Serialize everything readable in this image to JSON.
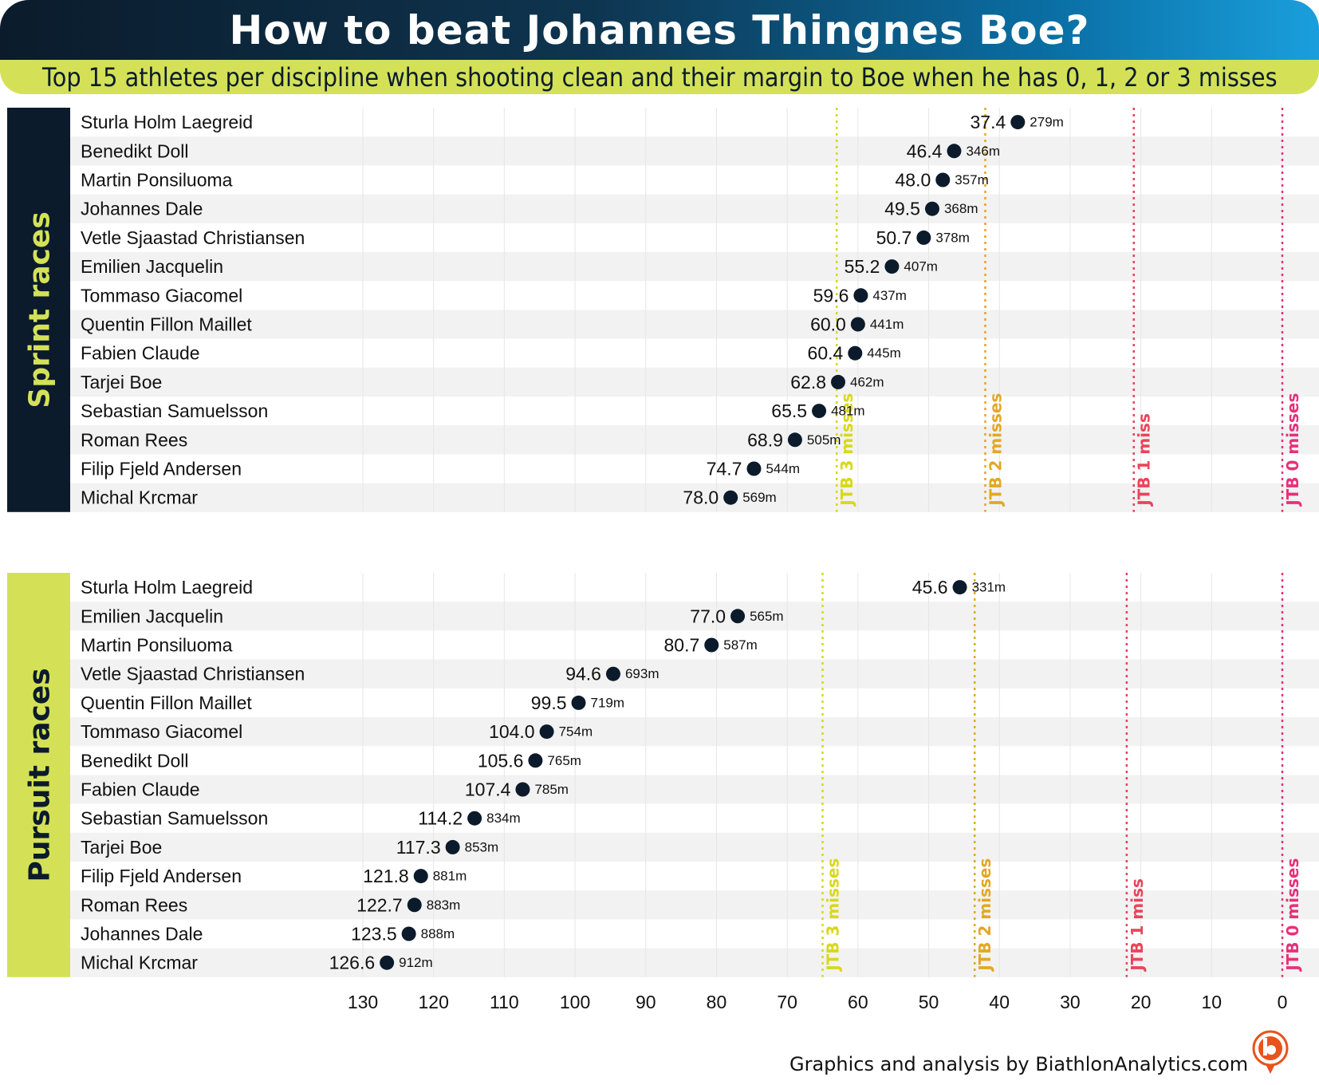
{
  "header": {
    "title": "How to beat Johannes Thingnes Boe?",
    "subtitle": "Top 15 athletes per discipline when shooting clean and their margin to Boe when he has 0, 1, 2 or 3 misses"
  },
  "footer": {
    "credit": "Graphics and analysis by BiathlonAnalytics.com"
  },
  "colors": {
    "dark": "#0b1b2b",
    "lime": "#d4e157",
    "jtb3": "#d8d81a",
    "jtb2": "#e3a726",
    "jtb1": "#e8455a",
    "jtb0": "#e8307a",
    "row_alt": "#f2f2f2",
    "dot": "#0b1b2b"
  },
  "chart_data": [
    {
      "type": "scatter",
      "panel_label": "Sprint races",
      "xlim": [
        130,
        0
      ],
      "x_ticks": [
        130,
        120,
        110,
        100,
        90,
        80,
        70,
        60,
        50,
        40,
        30,
        20,
        10,
        0
      ],
      "athletes": [
        {
          "name": "Sturla Holm Laegreid",
          "value": "37.4",
          "distance": "279m"
        },
        {
          "name": "Benedikt Doll",
          "value": "46.4",
          "distance": "346m"
        },
        {
          "name": "Martin Ponsiluoma",
          "value": "48.0",
          "distance": "357m"
        },
        {
          "name": "Johannes Dale",
          "value": "49.5",
          "distance": "368m"
        },
        {
          "name": "Vetle Sjaastad Christiansen",
          "value": "50.7",
          "distance": "378m"
        },
        {
          "name": "Emilien Jacquelin",
          "value": "55.2",
          "distance": "407m"
        },
        {
          "name": "Tommaso Giacomel",
          "value": "59.6",
          "distance": "437m"
        },
        {
          "name": "Quentin Fillon Maillet",
          "value": "60.0",
          "distance": "441m"
        },
        {
          "name": "Fabien Claude",
          "value": "60.4",
          "distance": "445m"
        },
        {
          "name": "Tarjei Boe",
          "value": "62.8",
          "distance": "462m"
        },
        {
          "name": "Sebastian Samuelsson",
          "value": "65.5",
          "distance": "481m"
        },
        {
          "name": "Roman Rees",
          "value": "68.9",
          "distance": "505m"
        },
        {
          "name": "Filip Fjeld Andersen",
          "value": "74.7",
          "distance": "544m"
        },
        {
          "name": "Michal Krcmar",
          "value": "78.0",
          "distance": "569m"
        }
      ],
      "reference_lines": [
        {
          "label": "JTB 3 misses",
          "value": 63,
          "color": "#d8d81a"
        },
        {
          "label": "JTB 2 misses",
          "value": 42,
          "color": "#e3a726"
        },
        {
          "label": "JTB 1 miss",
          "value": 21,
          "color": "#e8455a"
        },
        {
          "label": "JTB 0 misses",
          "value": 0,
          "color": "#e8307a"
        }
      ]
    },
    {
      "type": "scatter",
      "panel_label": "Pursuit races",
      "xlim": [
        130,
        0
      ],
      "x_ticks": [
        130,
        120,
        110,
        100,
        90,
        80,
        70,
        60,
        50,
        40,
        30,
        20,
        10,
        0
      ],
      "athletes": [
        {
          "name": "Sturla Holm Laegreid",
          "value": "45.6",
          "distance": "331m"
        },
        {
          "name": "Emilien Jacquelin",
          "value": "77.0",
          "distance": "565m"
        },
        {
          "name": "Martin Ponsiluoma",
          "value": "80.7",
          "distance": "587m"
        },
        {
          "name": "Vetle Sjaastad Christiansen",
          "value": "94.6",
          "distance": "693m"
        },
        {
          "name": "Quentin Fillon Maillet",
          "value": "99.5",
          "distance": "719m"
        },
        {
          "name": "Tommaso Giacomel",
          "value": "104.0",
          "distance": "754m"
        },
        {
          "name": "Benedikt Doll",
          "value": "105.6",
          "distance": "765m"
        },
        {
          "name": "Fabien Claude",
          "value": "107.4",
          "distance": "785m"
        },
        {
          "name": "Sebastian Samuelsson",
          "value": "114.2",
          "distance": "834m"
        },
        {
          "name": "Tarjei Boe",
          "value": "117.3",
          "distance": "853m"
        },
        {
          "name": "Filip Fjeld Andersen",
          "value": "121.8",
          "distance": "881m"
        },
        {
          "name": "Roman Rees",
          "value": "122.7",
          "distance": "883m"
        },
        {
          "name": "Johannes Dale",
          "value": "123.5",
          "distance": "888m"
        },
        {
          "name": "Michal Krcmar",
          "value": "126.6",
          "distance": "912m"
        }
      ],
      "reference_lines": [
        {
          "label": "JTB 3 misses",
          "value": 65,
          "color": "#d8d81a"
        },
        {
          "label": "JTB 2 misses",
          "value": 43.5,
          "color": "#e3a726"
        },
        {
          "label": "JTB 1 miss",
          "value": 22,
          "color": "#e8455a"
        },
        {
          "label": "JTB 0 misses",
          "value": 0,
          "color": "#e8307a"
        }
      ]
    }
  ]
}
